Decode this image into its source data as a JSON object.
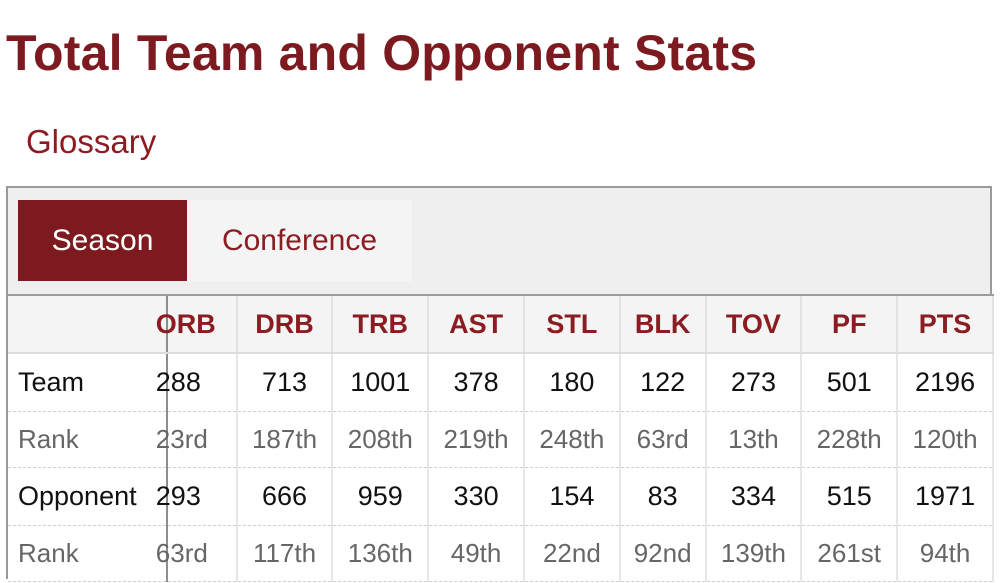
{
  "page": {
    "title": "Total Team and Opponent Stats",
    "glossary_link": "Glossary"
  },
  "tabs": [
    {
      "label": "Season",
      "active": true
    },
    {
      "label": "Conference",
      "active": false
    }
  ],
  "colors": {
    "accent": "#7d1a1f",
    "link": "#8a1c22",
    "panel_bg": "#efefef",
    "border": "#9a9a9a"
  },
  "table": {
    "columns": [
      "ORB",
      "DRB",
      "TRB",
      "AST",
      "STL",
      "BLK",
      "TOV",
      "PF",
      "PTS"
    ],
    "rows": [
      {
        "label": "Team",
        "type": "main",
        "values": [
          "288",
          "713",
          "1001",
          "378",
          "180",
          "122",
          "273",
          "501",
          "2196"
        ]
      },
      {
        "label": "Rank",
        "type": "rank",
        "values": [
          "23rd",
          "187th",
          "208th",
          "219th",
          "248th",
          "63rd",
          "13th",
          "228th",
          "120th"
        ]
      },
      {
        "label": "Opponent",
        "type": "main",
        "values": [
          "293",
          "666",
          "959",
          "330",
          "154",
          "83",
          "334",
          "515",
          "1971"
        ]
      },
      {
        "label": "Rank",
        "type": "rank",
        "values": [
          "63rd",
          "117th",
          "136th",
          "49th",
          "22nd",
          "92nd",
          "139th",
          "261st",
          "94th"
        ]
      }
    ]
  }
}
